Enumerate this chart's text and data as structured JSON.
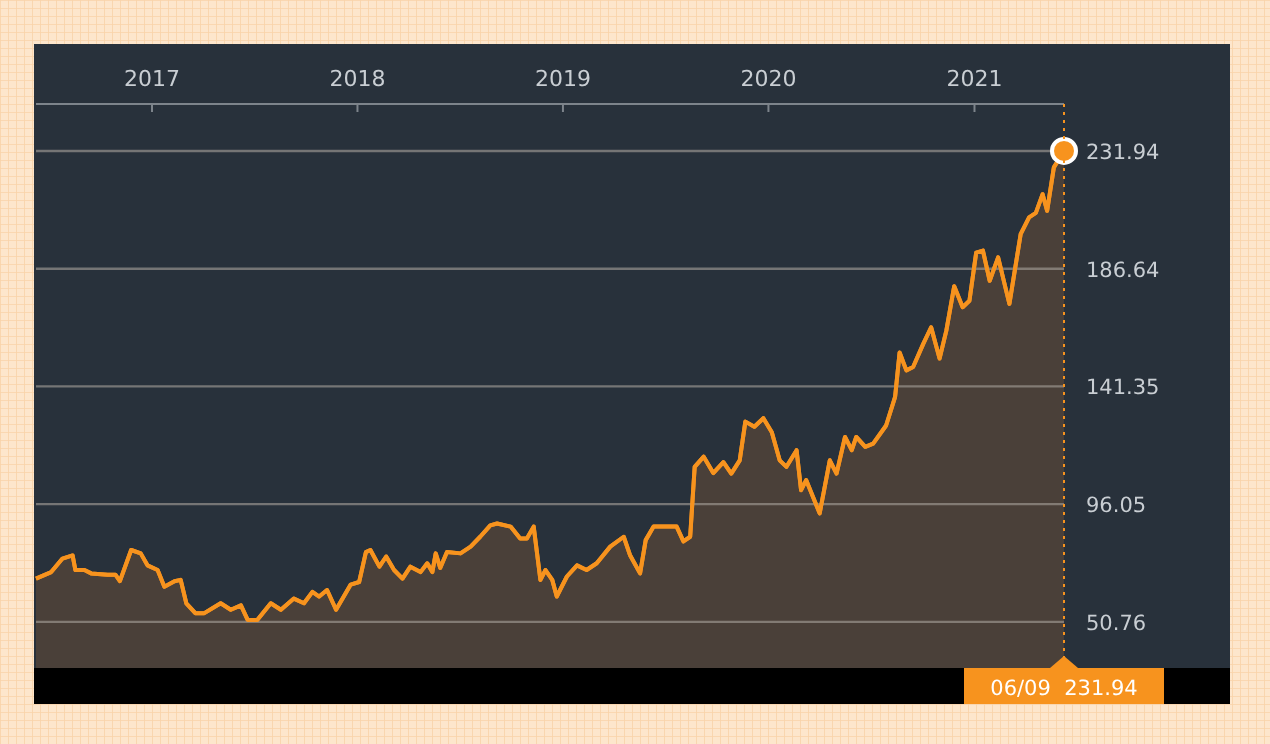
{
  "chart_data": {
    "type": "area",
    "x": [
      "2016-06-09",
      "2016-07-06",
      "2016-07-26",
      "2016-08-13",
      "2016-08-18",
      "2016-09-03",
      "2016-09-15",
      "2016-10-14",
      "2016-10-28",
      "2016-11-05",
      "2016-11-25",
      "2016-12-12",
      "2016-12-24",
      "2017-01-11",
      "2017-01-23",
      "2017-02-10",
      "2017-02-21",
      "2017-03-03",
      "2017-03-19",
      "2017-04-04",
      "2017-05-03",
      "2017-05-21",
      "2017-06-08",
      "2017-06-20",
      "2017-07-07",
      "2017-07-31",
      "2017-08-18",
      "2017-09-10",
      "2017-09-28",
      "2017-10-13",
      "2017-10-25",
      "2017-11-08",
      "2017-11-24",
      "2017-12-20",
      "2018-01-04",
      "2018-01-16",
      "2018-01-24",
      "2018-02-09",
      "2018-02-21",
      "2018-03-07",
      "2018-03-22",
      "2018-04-05",
      "2018-04-23",
      "2018-05-05",
      "2018-05-14",
      "2018-05-20",
      "2018-05-28",
      "2018-06-09",
      "2018-07-03",
      "2018-07-21",
      "2018-08-07",
      "2018-08-25",
      "2018-09-06",
      "2018-09-30",
      "2018-10-17",
      "2018-10-29",
      "2018-11-10",
      "2018-11-22",
      "2018-12-01",
      "2018-12-13",
      "2018-12-21",
      "2019-01-08",
      "2019-01-26",
      "2019-02-12",
      "2019-03-02",
      "2019-03-26",
      "2019-04-19",
      "2019-04-30",
      "2019-05-18",
      "2019-05-28",
      "2019-06-11",
      "2019-07-04",
      "2019-07-22",
      "2019-08-03",
      "2019-08-15",
      "2019-08-23",
      "2019-09-08",
      "2019-09-25",
      "2019-10-13",
      "2019-10-27",
      "2019-11-11",
      "2019-11-21",
      "2019-12-07",
      "2019-12-23",
      "2020-01-07",
      "2020-01-21",
      "2020-02-02",
      "2020-02-20",
      "2020-02-28",
      "2020-03-08",
      "2020-04-01",
      "2020-04-19",
      "2020-05-01",
      "2020-05-16",
      "2020-05-28",
      "2020-06-05",
      "2020-06-21",
      "2020-07-05",
      "2020-07-28",
      "2020-08-13",
      "2020-08-21",
      "2020-09-02",
      "2020-09-14",
      "2020-10-02",
      "2020-10-16",
      "2020-10-31",
      "2020-11-12",
      "2020-11-26",
      "2020-12-11",
      "2020-12-23",
      "2021-01-04",
      "2021-01-16",
      "2021-01-28",
      "2021-02-12",
      "2021-03-04",
      "2021-03-24",
      "2021-04-08",
      "2021-04-20",
      "2021-05-02",
      "2021-05-10",
      "2021-05-22",
      "2021-06-09"
    ],
    "series": [
      {
        "color": "#f7931e",
        "values": [
          67.4,
          69.9,
          75.1,
          76.3,
          70.7,
          70.7,
          69.4,
          68.9,
          68.9,
          66.4,
          78.4,
          77.1,
          72.5,
          70.7,
          64.3,
          66.4,
          66.9,
          57.9,
          54.1,
          54.1,
          57.9,
          55.4,
          57.1,
          51.5,
          51.5,
          57.9,
          55.4,
          59.7,
          57.9,
          62.3,
          60.5,
          63.0,
          55.4,
          65.1,
          66.1,
          77.6,
          78.4,
          72.0,
          75.9,
          70.7,
          67.4,
          72.0,
          69.9,
          73.3,
          69.9,
          77.1,
          71.5,
          77.6,
          77.1,
          79.7,
          83.5,
          87.9,
          88.6,
          87.4,
          82.8,
          82.8,
          87.4,
          66.9,
          70.7,
          66.9,
          60.5,
          68.2,
          72.5,
          70.7,
          73.3,
          79.7,
          83.5,
          76.5,
          69.4,
          82.2,
          87.4,
          87.4,
          87.4,
          81.7,
          83.5,
          110.4,
          114.3,
          108.0,
          112.2,
          107.8,
          112.9,
          127.8,
          125.8,
          129.1,
          123.7,
          112.9,
          110.4,
          116.8,
          101.4,
          105.3,
          92.5,
          112.9,
          107.8,
          121.9,
          116.8,
          121.9,
          118.1,
          119.3,
          126.3,
          137.3,
          154.4,
          147.5,
          148.8,
          157.7,
          164.1,
          152.1,
          162.8,
          179.9,
          171.8,
          174.3,
          192.8,
          193.6,
          182.0,
          191.0,
          173.1,
          199.9,
          206.4,
          208.1,
          215.3,
          208.9,
          225.6,
          231.94
        ]
      },
      {
        "type": "scatter",
        "color": "#f7931e",
        "marker": "circle",
        "x": [
          "2021-06-09"
        ],
        "values": [
          231.94
        ]
      }
    ],
    "xlim": [
      "2016-06-09",
      "2021-06-09"
    ],
    "xticks": [
      {
        "value": "2017-01-01",
        "label": "2017"
      },
      {
        "value": "2018-01-01",
        "label": "2018"
      },
      {
        "value": "2019-01-01",
        "label": "2019"
      },
      {
        "value": "2020-01-01",
        "label": "2020"
      },
      {
        "value": "2021-01-01",
        "label": "2021"
      }
    ],
    "ylim": [
      33,
      250
    ],
    "yticks": [
      50.76,
      96.05,
      141.35,
      186.64,
      231.94
    ],
    "grid": "y",
    "ref_lines": [
      {
        "axis": "x",
        "value": "2021-06-09",
        "label": "06/09  231.94",
        "color": "#f7931e",
        "line_style": "dotted"
      }
    ]
  }
}
